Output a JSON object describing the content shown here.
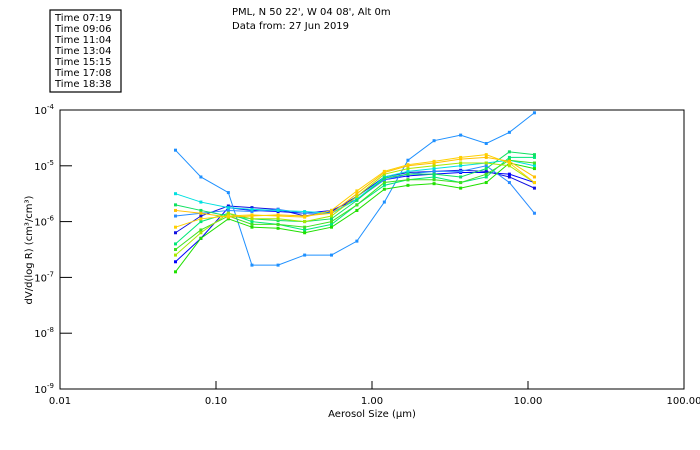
{
  "header": {
    "title": "PML, N 50 22', W 04 08', Alt 0m",
    "subtitle": "Data from: 27 Jun 2019"
  },
  "chart_data": {
    "type": "line",
    "xscale": "log",
    "yscale": "log",
    "xlabel": "Aerosol Size (μm)",
    "ylabel": "dV/d(log R) (cm³/cm³)",
    "xlim": [
      0.01,
      100
    ],
    "ylim_log10": [
      -9,
      -4
    ],
    "x_ticks": [
      {
        "v": 0.01,
        "label": "0.01"
      },
      {
        "v": 0.1,
        "label": "0.10"
      },
      {
        "v": 1,
        "label": "1.00"
      },
      {
        "v": 10,
        "label": "10.00"
      },
      {
        "v": 100,
        "label": "100.00"
      }
    ],
    "y_ticks": [
      {
        "exp": -4,
        "base": "10",
        "sup": "-4"
      },
      {
        "exp": -5,
        "base": "10",
        "sup": "-5"
      },
      {
        "exp": -6,
        "base": "10",
        "sup": "-6"
      },
      {
        "exp": -7,
        "base": "10",
        "sup": "-7"
      },
      {
        "exp": -8,
        "base": "10",
        "sup": "-8"
      }
    ],
    "legend_position": "top-left",
    "x": [
      0.055,
      0.08,
      0.12,
      0.17,
      0.25,
      0.37,
      0.55,
      0.8,
      1.2,
      1.7,
      2.5,
      3.7,
      5.4,
      7.6,
      11
    ],
    "series": [
      {
        "name": "Time 07:19",
        "color": "#0000ff",
        "log10_values": [
          -6.72,
          -6.3,
          -5.75,
          -5.8,
          -5.82,
          -5.85,
          -5.8,
          -5.6,
          -5.25,
          -5.18,
          -5.15,
          -5.12,
          -5.12,
          -5.15,
          -5.3
        ]
      },
      {
        "name": "Time 07:19 b",
        "color": "#1010e0",
        "log10_values": [
          -6.2,
          -5.9,
          -5.72,
          -5.75,
          -5.78,
          -5.9,
          -5.82,
          -5.55,
          -5.2,
          -5.12,
          -5.1,
          -5.08,
          -5.1,
          -5.2,
          -5.4
        ]
      },
      {
        "name": "Time 09:06",
        "color": "#1e90ff",
        "log10_values": [
          -4.72,
          -5.2,
          -5.48,
          -6.78,
          -6.78,
          -6.6,
          -6.6,
          -6.35,
          -5.65,
          -4.9,
          -4.55,
          -4.45,
          -4.6,
          -4.4,
          -4.05
        ]
      },
      {
        "name": "Time 09:06 b",
        "color": "#2a8cff",
        "log10_values": [
          -5.9,
          -5.85,
          -5.8,
          -5.82,
          -5.78,
          -5.85,
          -5.85,
          -5.6,
          -5.25,
          -5.15,
          -5.1,
          -5.1,
          -5.0,
          -5.3,
          -5.85
        ]
      },
      {
        "name": "Time 11:04",
        "color": "#00e0e0",
        "log10_values": [
          -5.5,
          -5.65,
          -5.75,
          -5.78,
          -5.8,
          -5.82,
          -5.85,
          -5.6,
          -5.2,
          -5.1,
          -5.05,
          -5.0,
          -4.95,
          -4.9,
          -5.0
        ]
      },
      {
        "name": "Time 13:04",
        "color": "#00e878",
        "log10_values": [
          -6.4,
          -6.0,
          -5.85,
          -6.0,
          -6.05,
          -6.15,
          -6.05,
          -5.7,
          -5.35,
          -5.25,
          -5.2,
          -5.3,
          -5.2,
          -4.85,
          -4.85
        ]
      },
      {
        "name": "Time 13:04 b",
        "color": "#10e060",
        "log10_values": [
          -5.7,
          -5.8,
          -5.9,
          -5.95,
          -5.98,
          -6.0,
          -5.95,
          -5.62,
          -5.22,
          -5.15,
          -5.15,
          -5.2,
          -5.05,
          -4.75,
          -4.8
        ]
      },
      {
        "name": "Time 15:15",
        "color": "#20e000",
        "log10_values": [
          -6.9,
          -6.3,
          -5.95,
          -6.1,
          -6.12,
          -6.2,
          -6.1,
          -5.8,
          -5.42,
          -5.35,
          -5.32,
          -5.4,
          -5.3,
          -4.95,
          -5.05
        ]
      },
      {
        "name": "Time 15:15 b",
        "color": "#40e020",
        "log10_values": [
          -6.5,
          -6.15,
          -5.9,
          -6.05,
          -6.05,
          -6.1,
          -6.0,
          -5.7,
          -5.3,
          -5.25,
          -5.25,
          -5.3,
          -5.15,
          -4.9,
          -4.95
        ]
      },
      {
        "name": "Time 17:08",
        "color": "#a8e800",
        "log10_values": [
          -6.6,
          -6.2,
          -5.85,
          -5.95,
          -5.95,
          -6.0,
          -5.9,
          -5.55,
          -5.15,
          -5.05,
          -5.0,
          -4.95,
          -4.95,
          -5.0,
          -5.3
        ]
      },
      {
        "name": "Time 18:38",
        "color": "#ffc000",
        "log10_values": [
          -5.8,
          -5.85,
          -5.92,
          -5.9,
          -5.88,
          -5.9,
          -5.85,
          -5.5,
          -5.12,
          -5.0,
          -4.95,
          -4.88,
          -4.85,
          -4.92,
          -5.2
        ]
      },
      {
        "name": "Time 18:38 b",
        "color": "#ffd000",
        "log10_values": [
          -6.1,
          -5.95,
          -5.9,
          -5.88,
          -5.9,
          -5.92,
          -5.8,
          -5.45,
          -5.1,
          -4.98,
          -4.92,
          -4.85,
          -4.8,
          -4.95,
          -5.3
        ]
      }
    ],
    "legend": [
      {
        "label": "Time 07:19",
        "color": "#0000ff"
      },
      {
        "label": "Time 09:06",
        "color": "#1e90ff"
      },
      {
        "label": "Time 11:04",
        "color": "#00e0e0"
      },
      {
        "label": "Time 13:04",
        "color": "#00e878"
      },
      {
        "label": "Time 15:15",
        "color": "#20e000"
      },
      {
        "label": "Time 17:08",
        "color": "#a8e800"
      },
      {
        "label": "Time 18:38",
        "color": "#ffc000"
      }
    ]
  }
}
